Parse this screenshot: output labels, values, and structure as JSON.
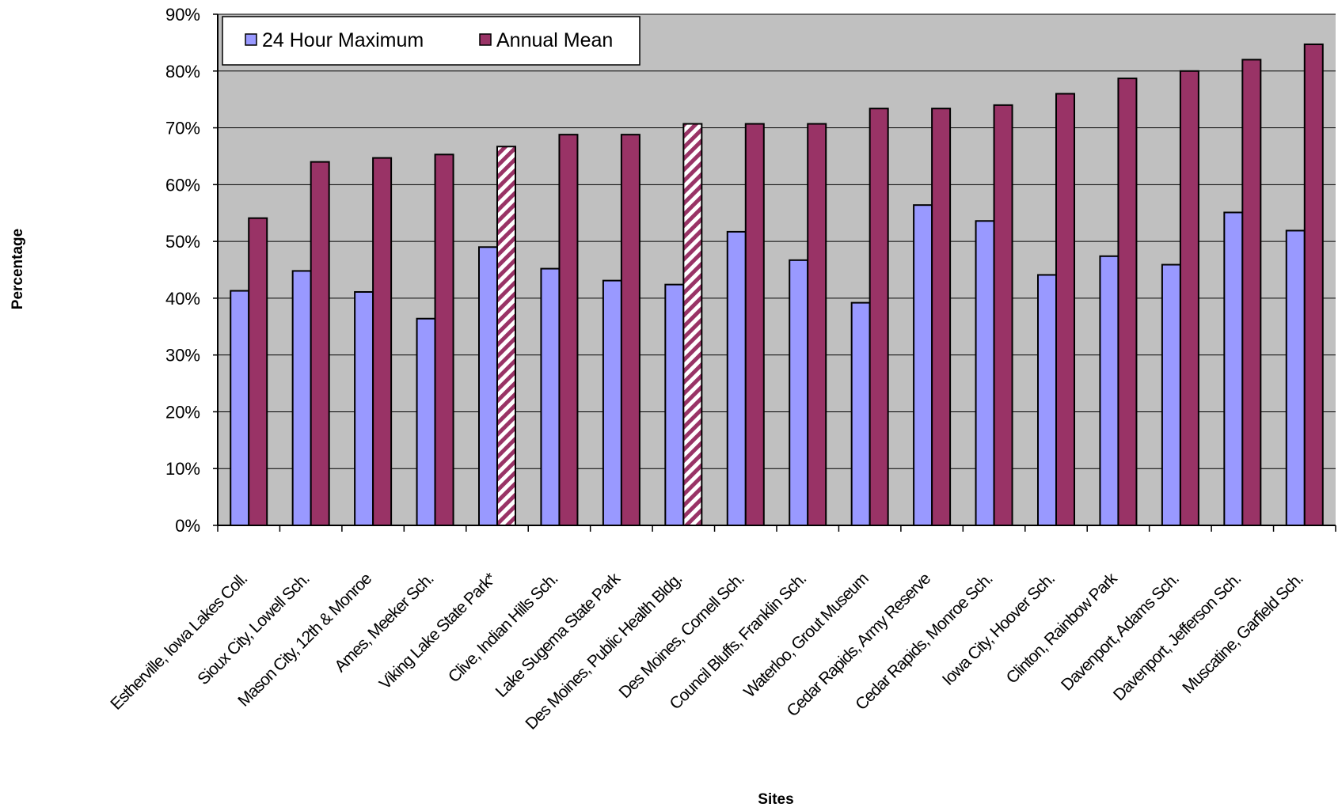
{
  "chart_data": {
    "type": "bar",
    "title": "",
    "xlabel": "Sites",
    "ylabel": "Percentage",
    "ylim": [
      0,
      90
    ],
    "yticks": [
      "0%",
      "10%",
      "20%",
      "30%",
      "40%",
      "50%",
      "60%",
      "70%",
      "80%",
      "90%"
    ],
    "grid": true,
    "legend_position": "top-left",
    "categories": [
      "Estherville, Iowa Lakes Coll.",
      "Sioux City, Lowell Sch.",
      "Mason City, 12th & Monroe",
      "Ames, Meeker Sch.",
      "Viking Lake State Park*",
      "Clive, Indian Hills Sch.",
      "Lake Sugema State Park",
      "Des Moines, Public Health Bldg.",
      "Des Moines, Cornell Sch.",
      "Council Bluffs, Franklin Sch.",
      "Waterloo, Grout Museum",
      "Cedar Rapids, Army Reserve",
      "Cedar Rapids, Monroe Sch.",
      "Iowa City, Hoover Sch.",
      "Clinton, Rainbow Park",
      "Davenport, Adams Sch.",
      "Davenport, Jefferson Sch.",
      "Muscatine, Garfield Sch."
    ],
    "series": [
      {
        "name": "24 Hour Maximum",
        "color": "#9999ff",
        "values": [
          41.3,
          44.8,
          41.1,
          36.4,
          49.0,
          45.2,
          43.1,
          42.4,
          51.7,
          46.7,
          39.2,
          56.4,
          53.6,
          44.1,
          47.4,
          45.9,
          55.1,
          51.9
        ]
      },
      {
        "name": "Annual Mean",
        "color": "#993366",
        "values": [
          54.1,
          64.0,
          64.7,
          65.3,
          66.7,
          68.8,
          68.8,
          70.7,
          70.7,
          70.7,
          73.4,
          73.4,
          74.0,
          76.0,
          78.7,
          80.0,
          82.0,
          84.7
        ],
        "hatched_indices": [
          4,
          7
        ]
      }
    ]
  }
}
